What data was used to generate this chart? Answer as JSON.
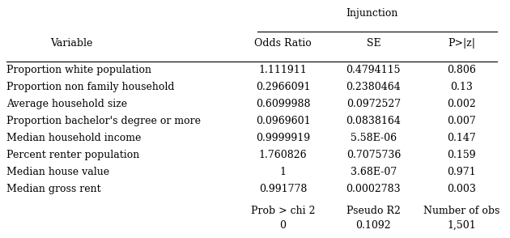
{
  "title": "Injunction",
  "col_headers": [
    "Odds Ratio",
    "SE",
    "P>|z|"
  ],
  "var_header": "Variable",
  "variables": [
    "Proportion white population",
    "Proportion non family household",
    "Average household size",
    "Proportion bachelor's degree or more",
    "Median household income",
    "Percent renter population",
    "Median house value",
    "Median gross rent"
  ],
  "odds_ratio": [
    "1.111911",
    "0.2966091",
    "0.6099988",
    "0.0969601",
    "0.9999919",
    "1.760826",
    "1",
    "0.991778"
  ],
  "se": [
    "0.4794115",
    "0.2380464",
    "0.0972527",
    "0.0838164",
    "5.58E-06",
    "0.7075736",
    "3.68E-07",
    "0.0002783"
  ],
  "p_value": [
    "0.806",
    "0.13",
    "0.002",
    "0.007",
    "0.147",
    "0.159",
    "0.971",
    "0.003"
  ],
  "footer_labels": [
    "Prob > chi 2",
    "Pseudo R2",
    "Number of obs"
  ],
  "footer_values": [
    "0",
    "0.1092",
    "1,501"
  ],
  "bg_color": "#ffffff",
  "text_color": "#000000",
  "font_size": 9
}
